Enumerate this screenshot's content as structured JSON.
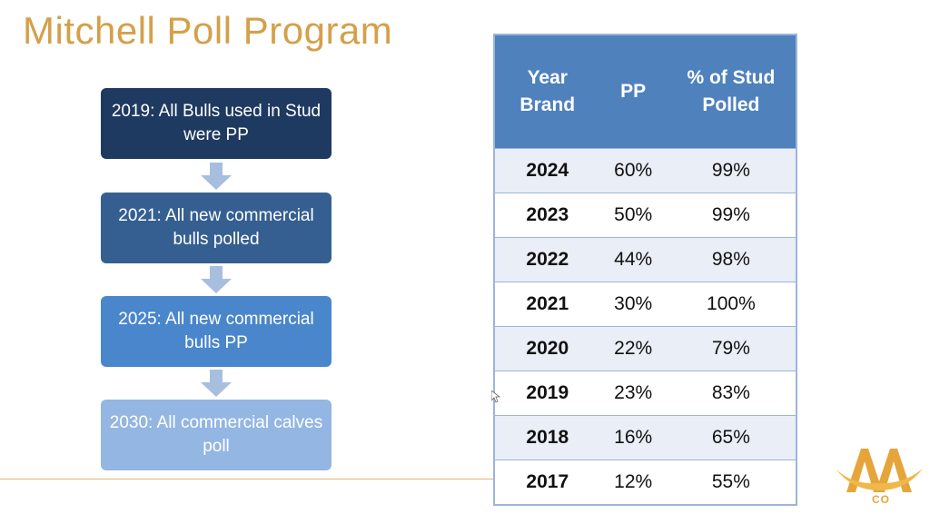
{
  "slide": {
    "title": "Mitchell Poll Program"
  },
  "flow": {
    "steps": [
      {
        "text": "2019: All Bulls used in Stud were PP",
        "color": "#1f3a60"
      },
      {
        "text": "2021: All new commercial bulls polled",
        "color": "#355f91"
      },
      {
        "text": "2025: All new commercial bulls PP",
        "color": "#4a86cc"
      },
      {
        "text": "2030: All commercial calves poll",
        "color": "#93b6e3"
      }
    ],
    "arrow_color": "#a8bedf"
  },
  "table": {
    "headers": [
      "Year Brand",
      "PP",
      "% of Stud Polled"
    ],
    "header_color": "#4f81bd",
    "rows": [
      {
        "year": "2024",
        "pp": "60%",
        "polled": "99%"
      },
      {
        "year": "2023",
        "pp": "50%",
        "polled": "99%"
      },
      {
        "year": "2022",
        "pp": "44%",
        "polled": "98%"
      },
      {
        "year": "2021",
        "pp": "30%",
        "polled": "100%"
      },
      {
        "year": "2020",
        "pp": "22%",
        "polled": "79%"
      },
      {
        "year": "2019",
        "pp": "23%",
        "polled": "83%"
      },
      {
        "year": "2018",
        "pp": "16%",
        "polled": "65%"
      },
      {
        "year": "2017",
        "pp": "12%",
        "polled": "55%"
      }
    ]
  },
  "logo": {
    "text": "AA CO",
    "icon": "aaco-logo",
    "co_label": "CO",
    "color": "#e6a53a"
  },
  "accent_color": "#d4a04a"
}
